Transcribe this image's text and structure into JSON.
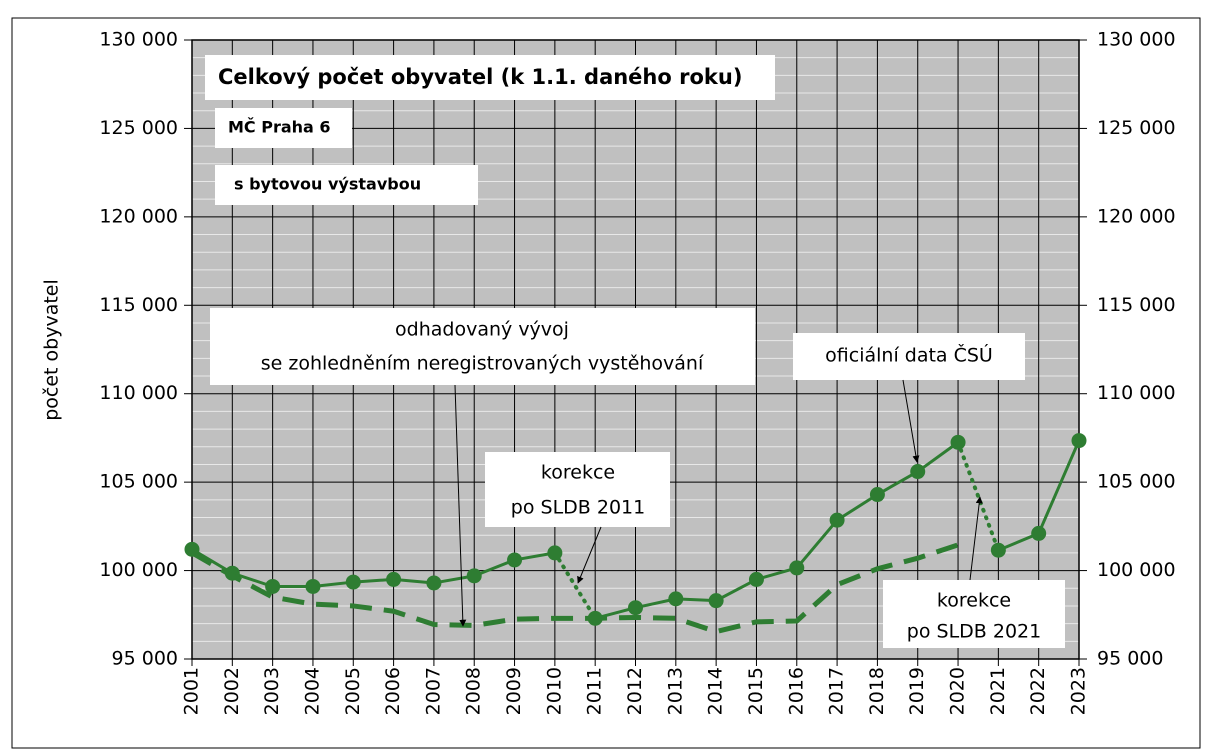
{
  "chart_data": {
    "type": "line",
    "y_axis_label": "počet obyvatel",
    "categories": [
      "2001",
      "2002",
      "2003",
      "2004",
      "2005",
      "2006",
      "2007",
      "2008",
      "2009",
      "2010",
      "2011",
      "2012",
      "2013",
      "2014",
      "2015",
      "2016",
      "2017",
      "2018",
      "2019",
      "2020",
      "2021",
      "2022",
      "2023"
    ],
    "series": [
      {
        "name": "oficiální data ČSÚ",
        "color": "#2e7d32",
        "line_style": "solid",
        "markers": true,
        "dotted_segments_after": [
          9,
          19
        ],
        "values": [
          101200,
          99850,
          99100,
          99100,
          99350,
          99500,
          99300,
          99700,
          100600,
          101000,
          97300,
          97900,
          98400,
          98300,
          99500,
          100150,
          102850,
          104300,
          105600,
          107250,
          101150,
          102100,
          107350
        ]
      },
      {
        "name": "odhadovaný vývoj se zohledněním neregistrovaných vystěhování",
        "color": "#2e7d32",
        "line_style": "dashed",
        "markers": false,
        "values": [
          101000,
          99700,
          98500,
          98100,
          98000,
          97700,
          96950,
          96900,
          97250,
          97300,
          97300,
          97350,
          97300,
          96550,
          97100,
          97150,
          99200,
          100100,
          100700,
          101450,
          null,
          null,
          null
        ]
      }
    ],
    "ylim": [
      95000,
      130000
    ],
    "yticks": [
      {
        "value": 95000,
        "label": "95 000"
      },
      {
        "value": 100000,
        "label": "100 000"
      },
      {
        "value": 105000,
        "label": "105 000"
      },
      {
        "value": 110000,
        "label": "110 000"
      },
      {
        "value": 115000,
        "label": "115 000"
      },
      {
        "value": 120000,
        "label": "120 000"
      },
      {
        "value": 125000,
        "label": "125 000"
      },
      {
        "value": 130000,
        "label": "130 000"
      }
    ],
    "grid": true,
    "annotations": {
      "title": "Celkový počet obyvatel (k 1.1. daného roku)",
      "district": "MČ Praha 6",
      "variant": "s bytovou výstavbou",
      "estimate": [
        "odhadovaný vývoj",
        "se zohledněním neregistrovaných vystěhování"
      ],
      "official": "oficiální data ČSÚ",
      "correction_2011": [
        "korekce",
        "po SLDB 2011"
      ],
      "correction_2021": [
        "korekce",
        "po SLDB 2021"
      ]
    }
  }
}
